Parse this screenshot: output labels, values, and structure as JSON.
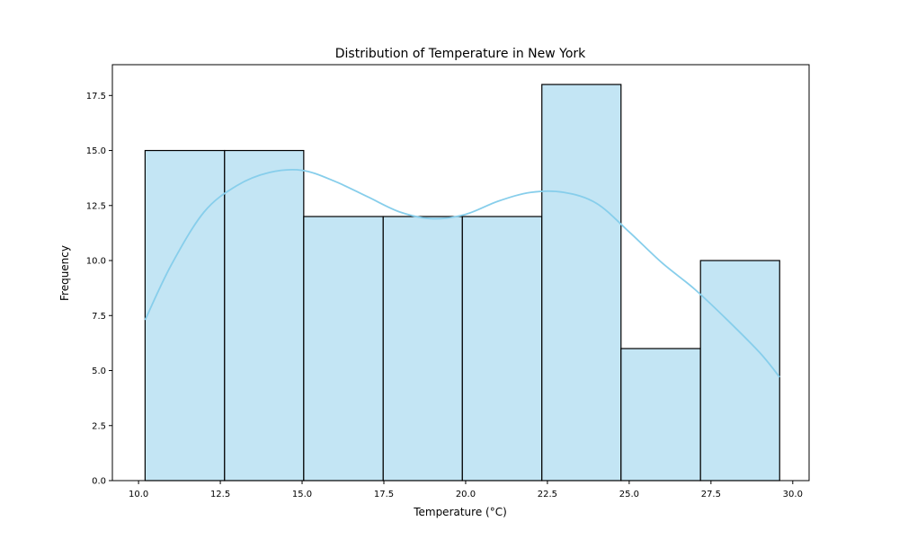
{
  "chart_data": {
    "type": "bar",
    "title": "Distribution of Temperature in New York",
    "xlabel": "Temperature (°C)",
    "ylabel": "Frequency",
    "xlim": [
      9.2,
      30.5
    ],
    "ylim": [
      0,
      18.9
    ],
    "xticks": [
      10.0,
      12.5,
      15.0,
      17.5,
      20.0,
      22.5,
      25.0,
      27.5,
      30.0
    ],
    "xtick_labels": [
      "10.0",
      "12.5",
      "15.0",
      "17.5",
      "20.0",
      "22.5",
      "25.0",
      "27.5",
      "30.0"
    ],
    "yticks": [
      0,
      2.5,
      5.0,
      7.5,
      10.0,
      12.5,
      15.0,
      17.5
    ],
    "ytick_labels": [
      "0.0",
      "2.5",
      "5.0",
      "7.5",
      "10.0",
      "12.5",
      "15.0",
      "17.5"
    ],
    "bin_edges": [
      10.2,
      12.63,
      15.05,
      17.48,
      19.9,
      22.33,
      24.75,
      27.18,
      29.6
    ],
    "counts": [
      15,
      15,
      12,
      12,
      12,
      18,
      6,
      10
    ],
    "kde": {
      "x": [
        10.2,
        11.0,
        12.0,
        13.0,
        14.0,
        15.0,
        16.0,
        17.0,
        18.0,
        19.0,
        20.0,
        21.0,
        22.0,
        23.0,
        24.0,
        25.0,
        26.0,
        27.0,
        28.0,
        29.0,
        29.6
      ],
      "y": [
        7.3,
        9.8,
        12.2,
        13.4,
        14.0,
        14.1,
        13.6,
        12.9,
        12.2,
        11.9,
        12.1,
        12.7,
        13.1,
        13.1,
        12.6,
        11.3,
        9.9,
        8.7,
        7.3,
        5.8,
        4.7
      ]
    },
    "colors": {
      "bar_fill": "#c3e5f4",
      "bar_edge": "#000000",
      "kde_line": "#87ceeb"
    },
    "grid": false,
    "legend": "none"
  }
}
